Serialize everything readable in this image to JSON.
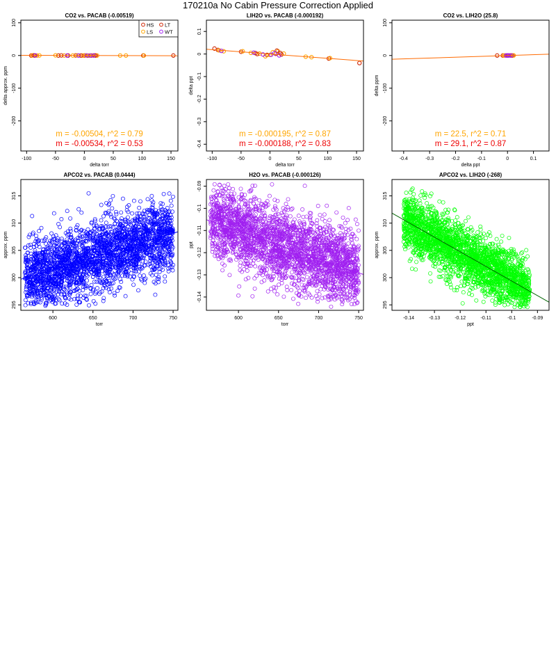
{
  "page_title": "170210a   No Cabin Pressure Correction Applied",
  "colors": {
    "HS": "#cc2200",
    "LS": "#ffa500",
    "LT": "#cc2200",
    "WT": "#a020f0",
    "blue": "#0000ff",
    "purple": "#a020f0",
    "green": "#00ff00",
    "fit_orange": "#ff6a00",
    "fit_dark_green": "#006400",
    "annot_orange": "#ffa500",
    "annot_red": "#ee0000"
  },
  "chart_data": [
    {
      "type": "scatter",
      "title": "CO2 vs. PACAB (-0.00519)",
      "xlabel": "delta torr",
      "ylabel": "delta approx. ppm",
      "xlim": [
        -110,
        162
      ],
      "ylim": [
        -292,
        108
      ],
      "xticks": [
        -100,
        -50,
        0,
        50,
        100,
        150
      ],
      "yticks": [
        100,
        0,
        -100,
        -200
      ],
      "legend": {
        "position": "top-right",
        "entries": [
          "HS",
          "LT",
          "LS",
          "WT"
        ]
      },
      "series": [
        {
          "name": "HS",
          "points": [
            [
              -92,
              0
            ],
            [
              -88,
              0.5
            ],
            [
              -45,
              0
            ],
            [
              -28,
              0
            ],
            [
              -15,
              0.3
            ],
            [
              0,
              0
            ],
            [
              6,
              -0.5
            ],
            [
              12,
              0
            ],
            [
              20,
              0
            ],
            [
              102,
              0
            ]
          ]
        },
        {
          "name": "LS",
          "points": [
            [
              -90,
              0.4
            ],
            [
              -82,
              0
            ],
            [
              -78,
              0.3
            ],
            [
              -50,
              0.5
            ],
            [
              -35,
              0
            ],
            [
              -20,
              0
            ],
            [
              -12,
              0.3
            ],
            [
              -3,
              0
            ],
            [
              2,
              0.4
            ],
            [
              8,
              0
            ],
            [
              15,
              0.3
            ],
            [
              22,
              0
            ],
            [
              62,
              0
            ],
            [
              72,
              0
            ],
            [
              103,
              0
            ]
          ]
        },
        {
          "name": "LT",
          "points": [
            [
              -86,
              0
            ],
            [
              -40,
              0.3
            ],
            [
              -6,
              0
            ],
            [
              18,
              0.4
            ],
            [
              154,
              0
            ]
          ]
        },
        {
          "name": "WT",
          "points": [
            [
              -85,
              0.2
            ],
            [
              -30,
              0
            ],
            [
              -10,
              0
            ],
            [
              4,
              0.3
            ],
            [
              10,
              0
            ],
            [
              16,
              0
            ]
          ]
        }
      ],
      "fit": {
        "slope": -0.00519,
        "intercept": 0,
        "color": "fit_orange"
      },
      "annotations": [
        "m = -0.00504, r^2 = 0.79",
        "m = -0.00534, r^2 = 0.53"
      ]
    },
    {
      "type": "scatter",
      "title": "LIH2O vs. PACAB (-0.000192)",
      "xlabel": "delta torr",
      "ylabel": "delta ppt",
      "xlim": [
        -110,
        162
      ],
      "ylim": [
        -0.43,
        0.15
      ],
      "xticks": [
        -100,
        -50,
        0,
        50,
        100,
        150
      ],
      "yticks": [
        0.1,
        0.0,
        -0.1,
        -0.2,
        -0.3,
        -0.4
      ],
      "series": [
        {
          "name": "HS",
          "points": [
            [
              -90,
              0.018
            ],
            [
              -50,
              0.01
            ],
            [
              -25,
              0.004
            ],
            [
              -5,
              -0.004
            ],
            [
              10,
              0.001
            ],
            [
              20,
              -0.002
            ],
            [
              102,
              -0.02
            ]
          ]
        },
        {
          "name": "LS",
          "points": [
            [
              -88,
              0.016
            ],
            [
              -80,
              0.012
            ],
            [
              -47,
              0.012
            ],
            [
              -33,
              0.005
            ],
            [
              -18,
              0.002
            ],
            [
              -8,
              -0.01
            ],
            [
              0,
              -0.004
            ],
            [
              5,
              0.008
            ],
            [
              14,
              0.012
            ],
            [
              24,
              0.002
            ],
            [
              62,
              -0.012
            ],
            [
              72,
              -0.014
            ],
            [
              104,
              -0.018
            ]
          ]
        },
        {
          "name": "LT",
          "points": [
            [
              -96,
              0.024
            ],
            [
              -22,
              0.0
            ],
            [
              12,
              0.015
            ],
            [
              18,
              0.004
            ],
            [
              155,
              -0.04
            ]
          ]
        },
        {
          "name": "WT",
          "points": [
            [
              -84,
              0.014
            ],
            [
              -28,
              0.006
            ],
            [
              -12,
              -0.002
            ],
            [
              2,
              -0.003
            ],
            [
              8,
              0.004
            ],
            [
              16,
              -0.006
            ]
          ]
        }
      ],
      "fit": {
        "slope": -0.000192,
        "intercept": 0,
        "color": "fit_orange"
      },
      "annotations": [
        "m = -0.000195, r^2 = 0.87",
        "m = -0.000188, r^2 = 0.83"
      ]
    },
    {
      "type": "scatter",
      "title": "CO2 vs. LIH2O (25.8)",
      "xlabel": "delta ppt",
      "ylabel": "delta ppm",
      "xlim": [
        -0.445,
        0.16
      ],
      "ylim": [
        -292,
        108
      ],
      "xticks": [
        -0.4,
        -0.3,
        -0.2,
        -0.1,
        0.0,
        0.1
      ],
      "yticks": [
        100,
        0,
        -100,
        -200
      ],
      "series": [
        {
          "name": "HS",
          "points": [
            [
              -0.018,
              0
            ],
            [
              -0.004,
              0.4
            ],
            [
              0.001,
              0
            ],
            [
              0.012,
              0.3
            ],
            [
              0.02,
              0
            ]
          ]
        },
        {
          "name": "LS",
          "points": [
            [
              -0.014,
              0
            ],
            [
              -0.01,
              0.4
            ],
            [
              -0.004,
              0
            ],
            [
              0.005,
              0.3
            ],
            [
              0.012,
              0
            ],
            [
              0.016,
              0
            ],
            [
              0.024,
              0.3
            ]
          ]
        },
        {
          "name": "LT",
          "points": [
            [
              -0.04,
              0
            ],
            [
              0.0,
              0.3
            ],
            [
              0.015,
              0
            ]
          ]
        },
        {
          "name": "WT",
          "points": [
            [
              -0.006,
              0
            ],
            [
              -0.002,
              0.3
            ],
            [
              0.003,
              0
            ],
            [
              0.006,
              0.3
            ],
            [
              0.014,
              0
            ]
          ]
        }
      ],
      "fit": {
        "slope": 25.8,
        "intercept": 0,
        "color": "fit_orange"
      },
      "annotations": [
        "m = 22.5, r^2 = 0.71",
        "m = 29.1, r^2 = 0.87"
      ]
    },
    {
      "type": "scatter",
      "title": "APCO2 vs. PACAB (0.0444)",
      "xlabel": "torr",
      "ylabel": "approx. ppm",
      "xlim": [
        560,
        756
      ],
      "ylim": [
        294,
        318
      ],
      "xticks": [
        600,
        650,
        700,
        750
      ],
      "yticks": [
        315,
        310,
        305,
        300,
        295
      ],
      "cloud": {
        "count": 2600,
        "x_range": [
          565,
          750
        ],
        "y_at_x0": 303.7,
        "x0": 650,
        "slope": 0.0444,
        "y_spread": 3.2,
        "clip": [
          294.5,
          317.5
        ],
        "color": "blue"
      },
      "fit": {
        "slope": 0.0444,
        "x0": 650,
        "y0": 303.7,
        "color": "blue"
      }
    },
    {
      "type": "scatter",
      "title": "H2O vs. PACAB (-0.000126)",
      "xlabel": "torr",
      "ylabel": "ppt",
      "xlim": [
        560,
        756
      ],
      "ylim": [
        -0.146,
        -0.087
      ],
      "xticks": [
        600,
        650,
        700,
        750
      ],
      "yticks": [
        -0.09,
        -0.1,
        -0.11,
        -0.12,
        -0.13,
        -0.14
      ],
      "cloud": {
        "count": 2600,
        "x_range": [
          565,
          750
        ],
        "y_at_x0": -0.1165,
        "x0": 650,
        "slope": -0.000126,
        "y_spread": 0.0085,
        "clip": [
          -0.145,
          -0.089
        ],
        "color": "purple"
      },
      "fit": {
        "slope": -0.000126,
        "x0": 650,
        "y0": -0.1165,
        "color": "purple"
      }
    },
    {
      "type": "scatter",
      "title": "APCO2 vs. LIH2O (-268)",
      "xlabel": "ppt",
      "ylabel": "approx. ppm",
      "xlim": [
        -0.1465,
        -0.0855
      ],
      "ylim": [
        294,
        318
      ],
      "xticks": [
        -0.14,
        -0.13,
        -0.12,
        -0.11,
        -0.1,
        -0.09
      ],
      "yticks": [
        315,
        310,
        305,
        300,
        295
      ],
      "cloud": {
        "count": 2600,
        "x_range": [
          -0.142,
          -0.093
        ],
        "y_at_x0": 304.2,
        "x0": -0.118,
        "slope": -268,
        "y_spread": 2.6,
        "clip": [
          294.5,
          317.5
        ],
        "color": "green"
      },
      "fit": {
        "slope": -268,
        "x0": -0.118,
        "y0": 304.2,
        "color": "fit_dark_green"
      }
    }
  ]
}
